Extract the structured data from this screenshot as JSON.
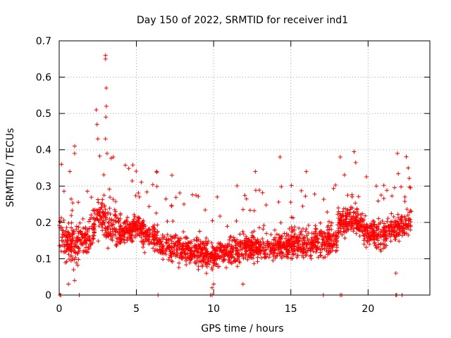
{
  "chart_data": {
    "type": "scatter",
    "title": "Day 150 of 2022, SRMTID for receiver ind1",
    "xlabel": "GPS time / hours",
    "ylabel": "SRMTID / TECUs",
    "xlim": [
      0,
      24
    ],
    "ylim": [
      0,
      0.7
    ],
    "x_ticks": [
      0,
      5,
      10,
      15,
      20
    ],
    "y_ticks": [
      0,
      0.1,
      0.2,
      0.3,
      0.4,
      0.5,
      0.6,
      0.7
    ],
    "x_tick_labels": [
      "0",
      "5",
      "10",
      "15",
      "20"
    ],
    "y_tick_labels": [
      "0",
      "0.1",
      "0.2",
      "0.3",
      "0.4",
      "0.5",
      "0.6",
      "0.7"
    ],
    "grid": true,
    "marker": "plus",
    "series_color": "#ff0000",
    "series": [
      {
        "name": "SRMTID",
        "segments": [
          {
            "t_start": 0.0,
            "t_end": 4.0,
            "base": [
              [
                0.0,
                0.17
              ],
              [
                1.0,
                0.14
              ],
              [
                2.0,
                0.16
              ],
              [
                2.5,
                0.22
              ],
              [
                3.0,
                0.2
              ],
              [
                4.0,
                0.18
              ]
            ],
            "spread": 0.07
          },
          {
            "t_start": 4.0,
            "t_end": 6.5,
            "base": [
              [
                4.0,
                0.18
              ],
              [
                5.0,
                0.19
              ],
              [
                6.0,
                0.16
              ],
              [
                6.5,
                0.15
              ]
            ],
            "spread": 0.05
          },
          {
            "t_start": 6.5,
            "t_end": 10.0,
            "base": [
              [
                6.5,
                0.13
              ],
              [
                8.0,
                0.13
              ],
              [
                9.0,
                0.12
              ],
              [
                10.0,
                0.1
              ]
            ],
            "spread": 0.05
          },
          {
            "t_start": 10.0,
            "t_end": 15.0,
            "base": [
              [
                10.0,
                0.11
              ],
              [
                12.0,
                0.13
              ],
              [
                13.5,
                0.13
              ],
              [
                15.0,
                0.14
              ]
            ],
            "spread": 0.05
          },
          {
            "t_start": 15.0,
            "t_end": 18.0,
            "base": [
              [
                15.0,
                0.14
              ],
              [
                16.5,
                0.14
              ],
              [
                18.0,
                0.15
              ]
            ],
            "spread": 0.05
          },
          {
            "t_start": 18.0,
            "t_end": 22.8,
            "base": [
              [
                18.0,
                0.2
              ],
              [
                19.0,
                0.21
              ],
              [
                20.0,
                0.17
              ],
              [
                21.0,
                0.17
              ],
              [
                22.0,
                0.19
              ],
              [
                22.8,
                0.2
              ]
            ],
            "spread": 0.05
          }
        ],
        "spikes": [
          {
            "x": 3.0,
            "y": 0.66
          },
          {
            "x": 3.0,
            "y": 0.65
          },
          {
            "x": 3.05,
            "y": 0.57
          },
          {
            "x": 3.05,
            "y": 0.52
          },
          {
            "x": 3.02,
            "y": 0.49
          },
          {
            "x": 2.4,
            "y": 0.51
          },
          {
            "x": 2.45,
            "y": 0.47
          },
          {
            "x": 2.5,
            "y": 0.43
          },
          {
            "x": 3.0,
            "y": 0.43
          },
          {
            "x": 3.1,
            "y": 0.39
          },
          {
            "x": 3.5,
            "y": 0.38
          },
          {
            "x": 1.0,
            "y": 0.41
          },
          {
            "x": 1.0,
            "y": 0.39
          },
          {
            "x": 0.15,
            "y": 0.36
          },
          {
            "x": 14.3,
            "y": 0.38
          },
          {
            "x": 18.2,
            "y": 0.38
          },
          {
            "x": 21.9,
            "y": 0.39
          },
          {
            "x": 22.6,
            "y": 0.35
          },
          {
            "x": 12.7,
            "y": 0.34
          },
          {
            "x": 16.0,
            "y": 0.34
          },
          {
            "x": 7.3,
            "y": 0.33
          },
          {
            "x": 6.3,
            "y": 0.34
          },
          {
            "x": 9.9,
            "y": 0.02
          },
          {
            "x": 10.0,
            "y": 0.03
          },
          {
            "x": 11.9,
            "y": 0.03
          },
          {
            "x": 1.0,
            "y": 0.04
          },
          {
            "x": 21.8,
            "y": 0.06
          },
          {
            "x": 0.6,
            "y": 0.03
          }
        ],
        "zero_markers": [
          0.05,
          0.1,
          1.3,
          6.4,
          9.8,
          9.9,
          17.1,
          18.2,
          18.3,
          21.8,
          21.85,
          22.2
        ]
      }
    ]
  }
}
